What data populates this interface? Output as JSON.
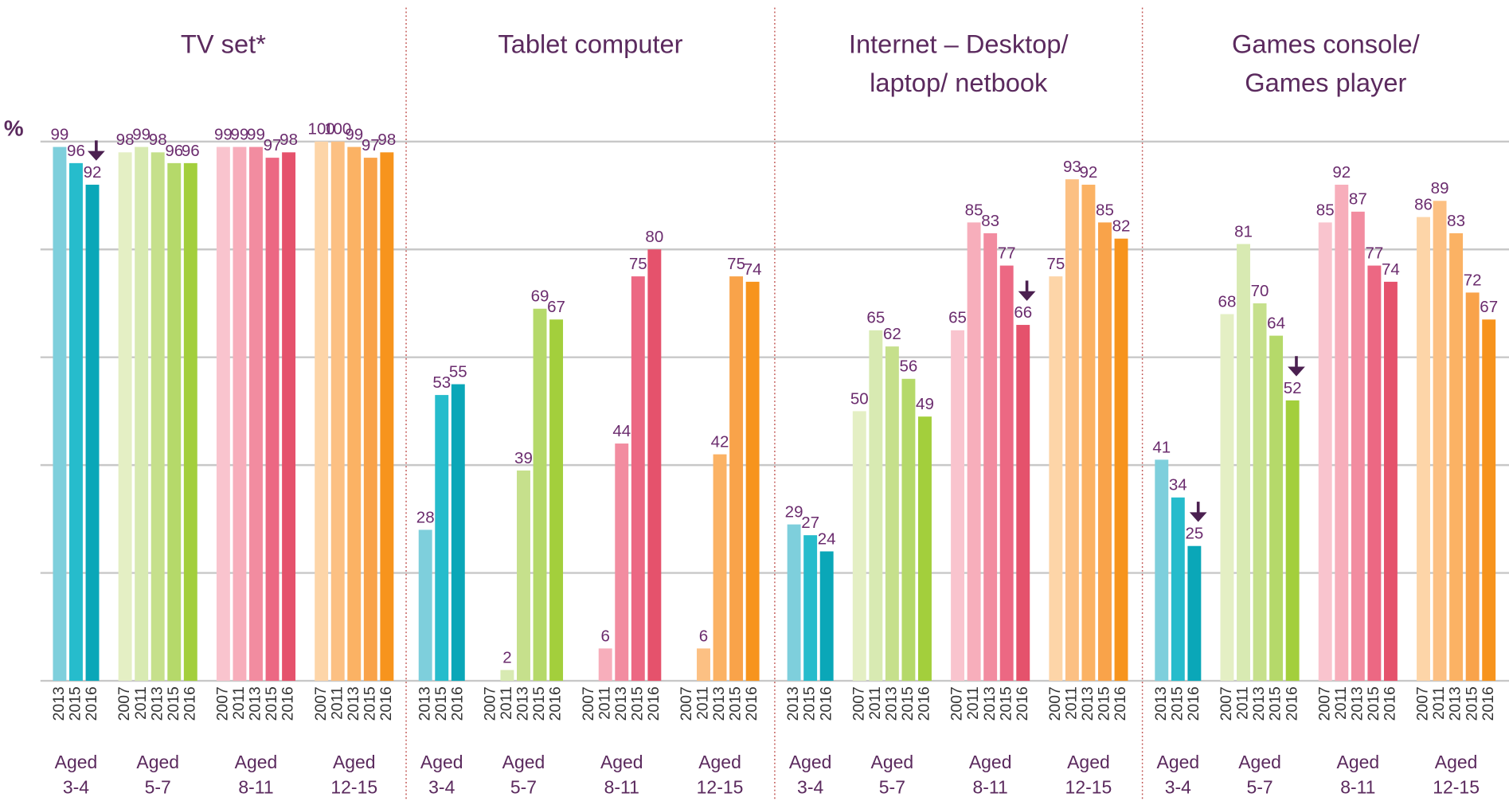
{
  "chart_data": [
    {
      "type": "bar",
      "title": "TV set*",
      "ylabel": "%",
      "ylim": [
        0,
        100
      ],
      "yticks": [
        0,
        20,
        40,
        60,
        80,
        100
      ],
      "grid": true,
      "groups": [
        {
          "label": "Aged\n3-4",
          "categories": [
            "2013",
            "2015",
            "2016"
          ],
          "values": [
            99,
            96,
            92
          ],
          "colors": [
            "#7ecfdc",
            "#26bccc",
            "#0aa7b8"
          ],
          "arrow": true
        },
        {
          "label": "Aged\n5-7",
          "categories": [
            "2007",
            "2011",
            "2013",
            "2015",
            "2016"
          ],
          "values": [
            98,
            99,
            98,
            96,
            96
          ],
          "colors": [
            "#e4efc4",
            "#d8eab2",
            "#c6e08c",
            "#b5d96a",
            "#a3cf3c"
          ]
        },
        {
          "label": "Aged\n8-11",
          "categories": [
            "2007",
            "2011",
            "2013",
            "2015",
            "2016"
          ],
          "values": [
            99,
            99,
            99,
            97,
            98
          ],
          "colors": [
            "#f9c4ce",
            "#f7aebb",
            "#f28ca0",
            "#ec6883",
            "#e5526c"
          ]
        },
        {
          "label": "Aged\n12-15",
          "categories": [
            "2007",
            "2011",
            "2013",
            "2015",
            "2016"
          ],
          "values": [
            100,
            100,
            99,
            97,
            98
          ],
          "colors": [
            "#fdd5a8",
            "#fcc083",
            "#fbb264",
            "#f9a34a",
            "#f7941d"
          ]
        }
      ]
    },
    {
      "type": "bar",
      "title": "Tablet computer",
      "ylim": [
        0,
        100
      ],
      "yticks": [
        0,
        20,
        40,
        60,
        80,
        100
      ],
      "grid": true,
      "groups": [
        {
          "label": "Aged\n3-4",
          "categories": [
            "2013",
            "2015",
            "2016"
          ],
          "values": [
            28,
            53,
            55
          ],
          "colors": [
            "#7ecfdc",
            "#26bccc",
            "#0aa7b8"
          ]
        },
        {
          "label": "Aged\n5-7",
          "categories": [
            "2007",
            "2011",
            "2013",
            "2015",
            "2016"
          ],
          "values": [
            null,
            2,
            39,
            69,
            67
          ],
          "colors": [
            "#e4efc4",
            "#d8eab2",
            "#c6e08c",
            "#b5d96a",
            "#a3cf3c"
          ]
        },
        {
          "label": "Aged\n8-11",
          "categories": [
            "2007",
            "2011",
            "2013",
            "2015",
            "2016"
          ],
          "values": [
            null,
            6,
            44,
            75,
            80
          ],
          "colors": [
            "#f9c4ce",
            "#f7aebb",
            "#f28ca0",
            "#ec6883",
            "#e5526c"
          ]
        },
        {
          "label": "Aged\n12-15",
          "categories": [
            "2007",
            "2011",
            "2013",
            "2015",
            "2016"
          ],
          "values": [
            null,
            6,
            42,
            75,
            74
          ],
          "colors": [
            "#fdd5a8",
            "#fcc083",
            "#fbb264",
            "#f9a34a",
            "#f7941d"
          ]
        }
      ]
    },
    {
      "type": "bar",
      "title": "Internet – Desktop/\nlaptop/ netbook",
      "ylim": [
        0,
        100
      ],
      "yticks": [
        0,
        20,
        40,
        60,
        80,
        100
      ],
      "grid": true,
      "groups": [
        {
          "label": "Aged\n3-4",
          "categories": [
            "2013",
            "2015",
            "2016"
          ],
          "values": [
            29,
            27,
            24
          ],
          "colors": [
            "#7ecfdc",
            "#26bccc",
            "#0aa7b8"
          ]
        },
        {
          "label": "Aged\n5-7",
          "categories": [
            "2007",
            "2011",
            "2013",
            "2015",
            "2016"
          ],
          "values": [
            50,
            65,
            62,
            56,
            49
          ],
          "colors": [
            "#e4efc4",
            "#d8eab2",
            "#c6e08c",
            "#b5d96a",
            "#a3cf3c"
          ]
        },
        {
          "label": "Aged\n8-11",
          "categories": [
            "2007",
            "2011",
            "2013",
            "2015",
            "2016"
          ],
          "values": [
            65,
            85,
            83,
            77,
            66
          ],
          "colors": [
            "#f9c4ce",
            "#f7aebb",
            "#f28ca0",
            "#ec6883",
            "#e5526c"
          ],
          "arrow": true
        },
        {
          "label": "Aged\n12-15",
          "categories": [
            "2007",
            "2011",
            "2013",
            "2015",
            "2016"
          ],
          "values": [
            75,
            93,
            92,
            85,
            82
          ],
          "colors": [
            "#fdd5a8",
            "#fcc083",
            "#fbb264",
            "#f9a34a",
            "#f7941d"
          ]
        }
      ]
    },
    {
      "type": "bar",
      "title": "Games console/\nGames player",
      "ylim": [
        0,
        100
      ],
      "yticks": [
        0,
        20,
        40,
        60,
        80,
        100
      ],
      "grid": true,
      "groups": [
        {
          "label": "Aged\n3-4",
          "categories": [
            "2013",
            "2015",
            "2016"
          ],
          "values": [
            41,
            34,
            25
          ],
          "colors": [
            "#7ecfdc",
            "#26bccc",
            "#0aa7b8"
          ],
          "arrow": true
        },
        {
          "label": "Aged\n5-7",
          "categories": [
            "2007",
            "2011",
            "2013",
            "2015",
            "2016"
          ],
          "values": [
            68,
            81,
            70,
            64,
            52
          ],
          "colors": [
            "#e4efc4",
            "#d8eab2",
            "#c6e08c",
            "#b5d96a",
            "#a3cf3c"
          ],
          "arrow": true
        },
        {
          "label": "Aged\n8-11",
          "categories": [
            "2007",
            "2011",
            "2013",
            "2015",
            "2016"
          ],
          "values": [
            85,
            92,
            87,
            77,
            74
          ],
          "colors": [
            "#f9c4ce",
            "#f7aebb",
            "#f28ca0",
            "#ec6883",
            "#e5526c"
          ]
        },
        {
          "label": "Aged\n12-15",
          "categories": [
            "2007",
            "2011",
            "2013",
            "2015",
            "2016"
          ],
          "values": [
            86,
            89,
            83,
            72,
            67
          ],
          "colors": [
            "#fdd5a8",
            "#fcc083",
            "#fbb264",
            "#f9a34a",
            "#f7941d"
          ]
        }
      ]
    }
  ]
}
